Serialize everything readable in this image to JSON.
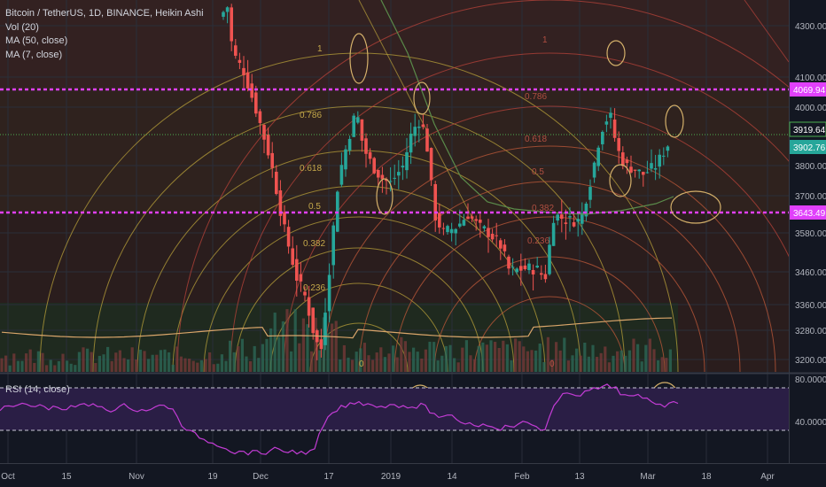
{
  "header": {
    "symbol_line": "Bitcoin / TetherUS, 1D, BINANCE, Heikin Ashi",
    "indicators": [
      "Vol (20)",
      "MA (50, close)",
      "MA (7, close)"
    ]
  },
  "rsi_panel": {
    "label": "RSI (14, close)"
  },
  "colors": {
    "background": "#131722",
    "up_candle": "#26a69a",
    "down_candle": "#ef5350",
    "level_line": "#e040fb",
    "fib_arc": "#b8a03a",
    "ma50": "#5a8a4a",
    "ma7": "#d9a56a",
    "rsi_line": "#c23cd4",
    "rsi_band": "#2a1e45",
    "annotation_circle": "#d4b06a"
  },
  "price_axis": {
    "ticks": [
      "4300.00",
      "4100.00",
      "4000.00",
      "3800.00",
      "3700.00",
      "3580.00",
      "3460.00",
      "3360.00",
      "3280.00",
      "3200.00"
    ],
    "markers": [
      {
        "label": "4069.94",
        "style": "level"
      },
      {
        "label": "3919.64",
        "style": "current-dark"
      },
      {
        "label": "3902.76",
        "style": "current-green"
      },
      {
        "label": "3643.49",
        "style": "level"
      }
    ]
  },
  "rsi_axis": {
    "ticks": [
      "80.0000",
      "40.0000"
    ]
  },
  "time_axis": {
    "ticks": [
      "Oct",
      "15",
      "Nov",
      "19",
      "Dec",
      "17",
      "2019",
      "14",
      "Feb",
      "13",
      "Mar",
      "18",
      "Apr"
    ]
  },
  "fib_labels": [
    "1",
    "0.786",
    "0.618",
    "0.5",
    "0.382",
    "0.236",
    "0"
  ],
  "fib_labels_right": [
    "1",
    "0.786",
    "0.618",
    "0.5",
    "0.382",
    "0.236",
    "0"
  ],
  "chart_data": {
    "type": "candlestick",
    "title": "Bitcoin / TetherUS, 1D, BINANCE, Heikin Ashi",
    "y_range": [
      3150,
      4420
    ],
    "horizontal_levels": [
      4069.94,
      3643.49
    ],
    "current_prices": [
      3919.64,
      3902.76
    ],
    "rsi_levels": [
      70,
      30
    ],
    "series": [
      {
        "name": "MA (50, close)"
      },
      {
        "name": "MA (7, close)"
      },
      {
        "name": "RSI (14, close)"
      }
    ]
  }
}
